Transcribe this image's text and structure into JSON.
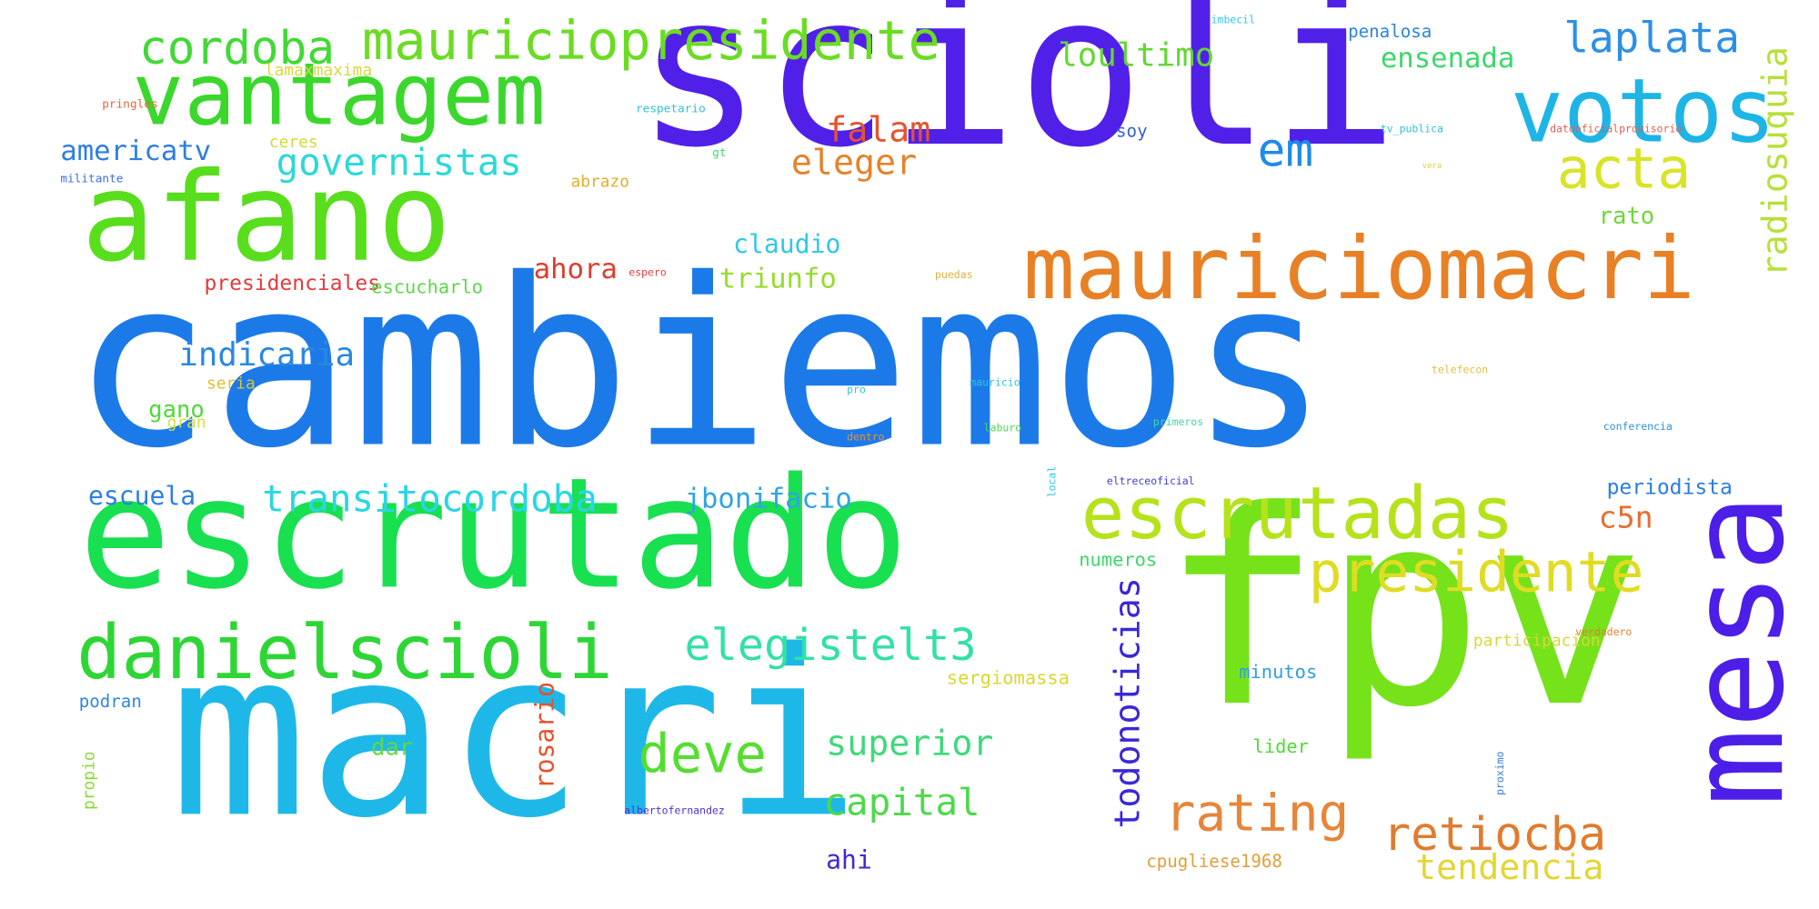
{
  "words": [
    {
      "text": "cambiemos",
      "color": "#1c7ae8",
      "vertical": false
    },
    {
      "text": "scioli",
      "color": "#5020e8",
      "vertical": false
    },
    {
      "text": "fpv",
      "color": "#76e21a",
      "vertical": false
    },
    {
      "text": "macri",
      "color": "#1eb8e8",
      "vertical": false
    },
    {
      "text": "escrutado",
      "color": "#18e050",
      "vertical": false
    },
    {
      "text": "mesa",
      "color": "#4c1ee8",
      "vertical": true
    },
    {
      "text": "afano",
      "color": "#58de1c",
      "vertical": false
    },
    {
      "text": "mauriciomacri",
      "color": "#e88025",
      "vertical": false
    },
    {
      "text": "vantagem",
      "color": "#3cd72d",
      "vertical": false
    },
    {
      "text": "votos",
      "color": "#1eb5e6",
      "vertical": false
    },
    {
      "text": "danielscioli",
      "color": "#2ed635",
      "vertical": false
    },
    {
      "text": "escrutadas",
      "color": "#b6e21c",
      "vertical": false
    },
    {
      "text": "mauriciopresidente",
      "color": "#6bdc23",
      "vertical": false
    },
    {
      "text": "presidente",
      "color": "#e0dc24",
      "vertical": false
    },
    {
      "text": "acta",
      "color": "#d8e426",
      "vertical": false
    },
    {
      "text": "cordoba",
      "color": "#42d935",
      "vertical": false
    },
    {
      "text": "elegistelt3",
      "color": "#33e0a6",
      "vertical": false
    },
    {
      "text": "deve",
      "color": "#55de30",
      "vertical": false
    },
    {
      "text": "rating",
      "color": "#e5863a",
      "vertical": false
    },
    {
      "text": "retiocba",
      "color": "#e07c2f",
      "vertical": false
    },
    {
      "text": "em",
      "color": "#1e8be8",
      "vertical": false
    },
    {
      "text": "laplata",
      "color": "#2c90e5",
      "vertical": false
    },
    {
      "text": "todonoticias",
      "color": "#3a28d8",
      "vertical": true
    },
    {
      "text": "radiosuquia",
      "color": "#b8e03a",
      "vertical": true
    },
    {
      "text": "governistas",
      "color": "#2ed8d8",
      "vertical": false
    },
    {
      "text": "transitocordoba",
      "color": "#2ad6e4",
      "vertical": false
    },
    {
      "text": "capital",
      "color": "#4ed94a",
      "vertical": false
    },
    {
      "text": "tendencia",
      "color": "#e2d633",
      "vertical": false
    },
    {
      "text": "superior",
      "color": "#3ed97a",
      "vertical": false
    },
    {
      "text": "indicaria",
      "color": "#2a88e0",
      "vertical": false
    },
    {
      "text": "falam",
      "color": "#e6532e",
      "vertical": false
    },
    {
      "text": "eleger",
      "color": "#e6822a",
      "vertical": false
    },
    {
      "text": "loultimo",
      "color": "#62d832",
      "vertical": false
    },
    {
      "text": "ensenada",
      "color": "#3cd86a",
      "vertical": false
    },
    {
      "text": "americatv",
      "color": "#2d7ee0",
      "vertical": false
    },
    {
      "text": "jbonifacio",
      "color": "#30a4e2",
      "vertical": false
    },
    {
      "text": "triunfo",
      "color": "#96dc2e",
      "vertical": false
    },
    {
      "text": "claudio",
      "color": "#30c8e4",
      "vertical": false
    },
    {
      "text": "ahora",
      "color": "#e03c2e",
      "vertical": false
    },
    {
      "text": "c5n",
      "color": "#e66f30",
      "vertical": false
    },
    {
      "text": "rosario",
      "color": "#e6522e",
      "vertical": true
    },
    {
      "text": "escuela",
      "color": "#2c80e0",
      "vertical": false
    },
    {
      "text": "ahi",
      "color": "#4028d4",
      "vertical": false
    },
    {
      "text": "rato",
      "color": "#6ed838",
      "vertical": false
    },
    {
      "text": "periodista",
      "color": "#2c7ee0",
      "vertical": false
    },
    {
      "text": "dar",
      "color": "#62d83a",
      "vertical": false
    },
    {
      "text": "gano",
      "color": "#52d83a",
      "vertical": false
    },
    {
      "text": "presidenciales",
      "color": "#e23c3c",
      "vertical": false
    },
    {
      "text": "escucharlo",
      "color": "#5ed84a",
      "vertical": false
    },
    {
      "text": "numeros",
      "color": "#3cd86a",
      "vertical": false
    },
    {
      "text": "minutos",
      "color": "#30a0e0",
      "vertical": false
    },
    {
      "text": "lider",
      "color": "#52d83a",
      "vertical": false
    },
    {
      "text": "sergiomassa",
      "color": "#d8d830",
      "vertical": false
    },
    {
      "text": "cpugliese1968",
      "color": "#e0a03a",
      "vertical": false
    },
    {
      "text": "podran",
      "color": "#3088e0",
      "vertical": false
    },
    {
      "text": "penalosa",
      "color": "#2c84e0",
      "vertical": false
    },
    {
      "text": "soy",
      "color": "#3460d8",
      "vertical": false
    },
    {
      "text": "ceres",
      "color": "#d8d838",
      "vertical": false
    },
    {
      "text": "abrazo",
      "color": "#e0b030",
      "vertical": false
    },
    {
      "text": "lamaxmaxima",
      "color": "#d8d840",
      "vertical": false
    },
    {
      "text": "seria",
      "color": "#e0c030",
      "vertical": false
    },
    {
      "text": "gran",
      "color": "#d8e040",
      "vertical": false
    },
    {
      "text": "participacion",
      "color": "#d8d83a",
      "vertical": false
    },
    {
      "text": "propio",
      "color": "#8cd838",
      "vertical": true
    },
    {
      "text": "pringles",
      "color": "#e06a3a",
      "vertical": false
    },
    {
      "text": "militante",
      "color": "#3a70e0",
      "vertical": false
    },
    {
      "text": "respetario",
      "color": "#30c4d8",
      "vertical": false
    },
    {
      "text": "gt",
      "color": "#40d870",
      "vertical": false
    },
    {
      "text": "espero",
      "color": "#e04040",
      "vertical": false
    },
    {
      "text": "puedas",
      "color": "#e0b040",
      "vertical": false
    },
    {
      "text": "pro",
      "color": "#30c8d8",
      "vertical": false
    },
    {
      "text": "mauricio",
      "color": "#30c4d8",
      "vertical": false
    },
    {
      "text": "dentro",
      "color": "#e09040",
      "vertical": false
    },
    {
      "text": "laburo",
      "color": "#50d850",
      "vertical": false
    },
    {
      "text": "primeros",
      "color": "#40d8a0",
      "vertical": false
    },
    {
      "text": "telefecon",
      "color": "#e0c040",
      "vertical": false
    },
    {
      "text": "conferencia",
      "color": "#3090e0",
      "vertical": false
    },
    {
      "text": "eltreceoficial",
      "color": "#4040d8",
      "vertical": false
    },
    {
      "text": "local",
      "color": "#30c8e0",
      "vertical": true
    },
    {
      "text": "verdadero",
      "color": "#e08030",
      "vertical": false
    },
    {
      "text": "proximo",
      "color": "#3a80e0",
      "vertical": true
    },
    {
      "text": "albertofernandez",
      "color": "#5030d8",
      "vertical": false
    },
    {
      "text": "imbecil",
      "color": "#30c8e0",
      "vertical": false
    },
    {
      "text": "tv_publica",
      "color": "#30c0d8",
      "vertical": false
    },
    {
      "text": "datooficialprovisorio",
      "color": "#e06050",
      "vertical": false
    },
    {
      "text": "vera",
      "color": "#e0d040",
      "vertical": false
    }
  ]
}
